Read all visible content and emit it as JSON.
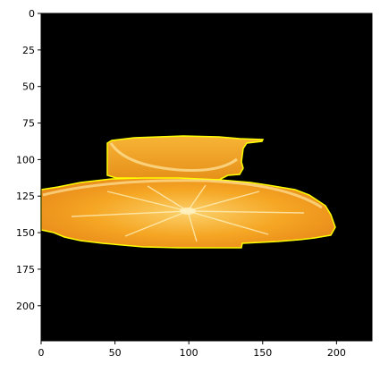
{
  "figure": {
    "x_axis": {
      "limits": [
        0,
        224
      ],
      "ticks": [
        0,
        50,
        100,
        150,
        200
      ],
      "tick_labels": [
        "0",
        "50",
        "100",
        "150",
        "200"
      ]
    },
    "y_axis": {
      "limits": [
        0,
        224
      ],
      "inverted": true,
      "ticks": [
        0,
        25,
        50,
        75,
        100,
        125,
        150,
        175,
        200
      ],
      "tick_labels": [
        "0",
        "25",
        "50",
        "75",
        "100",
        "125",
        "150",
        "175",
        "200"
      ]
    },
    "image": {
      "subject": "two orange slices on black background",
      "background_color": "#000000",
      "outline_color": "#ffff00",
      "fruit_colors": [
        "#f5a623",
        "#e8891a",
        "#fbd06a"
      ]
    }
  }
}
